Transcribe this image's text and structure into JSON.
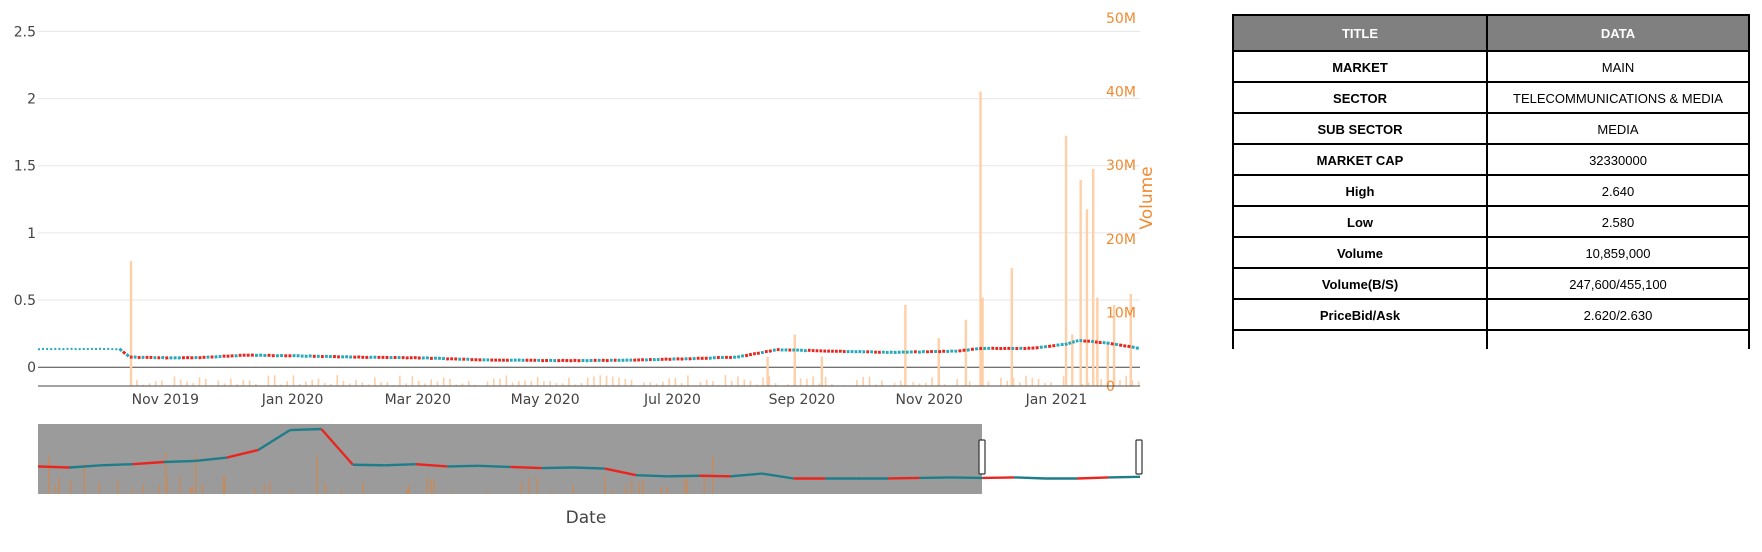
{
  "chart_data": {
    "type": "line",
    "xlabel": "Date",
    "ylabel": "",
    "y2label": "Volume",
    "ylim": [
      -0.14,
      2.6
    ],
    "y2lim": [
      0,
      50000000
    ],
    "y_ticks": [
      "0",
      "0.5",
      "1",
      "1.5",
      "2",
      "2.5"
    ],
    "y2_ticks": [
      "0",
      "10M",
      "20M",
      "30M",
      "40M",
      "50M"
    ],
    "x_ticks": [
      "Nov 2019",
      "Jan 2020",
      "Mar 2020",
      "May 2020",
      "Jul 2020",
      "Sep 2020",
      "Nov 2020",
      "Jan 2021"
    ],
    "x_range": [
      "2019-09-01",
      "2021-02-10"
    ],
    "colors": {
      "up": "#26a9b8",
      "down": "#e8261f",
      "volume": "#ffcfa8",
      "volume_axis": "#f08a30"
    },
    "price_series": [
      [
        "2019-09-01",
        0.135
      ],
      [
        "2019-10-10",
        0.135
      ],
      [
        "2019-10-15",
        0.075
      ],
      [
        "2019-11-01",
        0.07
      ],
      [
        "2019-11-15",
        0.07
      ],
      [
        "2019-12-10",
        0.09
      ],
      [
        "2020-01-01",
        0.085
      ],
      [
        "2020-02-01",
        0.075
      ],
      [
        "2020-03-01",
        0.07
      ],
      [
        "2020-04-01",
        0.055
      ],
      [
        "2020-05-01",
        0.05
      ],
      [
        "2020-06-01",
        0.05
      ],
      [
        "2020-07-01",
        0.06
      ],
      [
        "2020-08-01",
        0.075
      ],
      [
        "2020-08-20",
        0.13
      ],
      [
        "2020-09-15",
        0.12
      ],
      [
        "2020-10-15",
        0.11
      ],
      [
        "2020-11-15",
        0.12
      ],
      [
        "2020-11-25",
        0.14
      ],
      [
        "2020-12-20",
        0.14
      ],
      [
        "2021-01-05",
        0.17
      ],
      [
        "2021-01-12",
        0.2
      ],
      [
        "2021-01-25",
        0.18
      ],
      [
        "2021-02-10",
        0.14
      ]
    ],
    "volume_spikes": [
      [
        "2019-10-15",
        17000000
      ],
      [
        "2020-08-15",
        4000000
      ],
      [
        "2020-08-28",
        7000000
      ],
      [
        "2020-09-10",
        4000000
      ],
      [
        "2020-10-20",
        11000000
      ],
      [
        "2020-11-05",
        6500000
      ],
      [
        "2020-11-18",
        9000000
      ],
      [
        "2020-11-25",
        40000000
      ],
      [
        "2020-11-26",
        12000000
      ],
      [
        "2020-12-10",
        16000000
      ],
      [
        "2021-01-05",
        34000000
      ],
      [
        "2021-01-08",
        7000000
      ],
      [
        "2021-01-12",
        28000000
      ],
      [
        "2021-01-15",
        24000000
      ],
      [
        "2021-01-18",
        29500000
      ],
      [
        "2021-01-20",
        12000000
      ],
      [
        "2021-01-25",
        6000000
      ],
      [
        "2021-01-28",
        11000000
      ],
      [
        "2021-02-05",
        12500000
      ]
    ],
    "range_selector": {
      "selected_start": "2019-09-01",
      "history_series": [
        0.32,
        0.3,
        0.34,
        0.36,
        0.4,
        0.42,
        0.48,
        0.62,
        0.98,
        1.0,
        0.35,
        0.34,
        0.36,
        0.32,
        0.33,
        0.31,
        0.29,
        0.3,
        0.28,
        0.16,
        0.14,
        0.15,
        0.14,
        0.19,
        0.1,
        0.1,
        0.1,
        0.1,
        0.11,
        0.12,
        0.11,
        0.12,
        0.1,
        0.1,
        0.12,
        0.13
      ]
    }
  },
  "info_table": {
    "headers": [
      "TITLE",
      "DATA"
    ],
    "rows": [
      {
        "key": "MARKET",
        "value": "MAIN"
      },
      {
        "key": "SECTOR",
        "value": "TELECOMMUNICATIONS & MEDIA"
      },
      {
        "key": "SUB SECTOR",
        "value": "MEDIA"
      },
      {
        "key": "MARKET CAP",
        "value": "32330000"
      },
      {
        "key": "High",
        "value": "2.640"
      },
      {
        "key": "Low",
        "value": "2.580"
      },
      {
        "key": "Volume",
        "value": "10,859,000"
      },
      {
        "key": "Volume(B/S)",
        "value": "247,600/455,100"
      },
      {
        "key": "PriceBid/Ask",
        "value": "2.620/2.630"
      }
    ]
  }
}
